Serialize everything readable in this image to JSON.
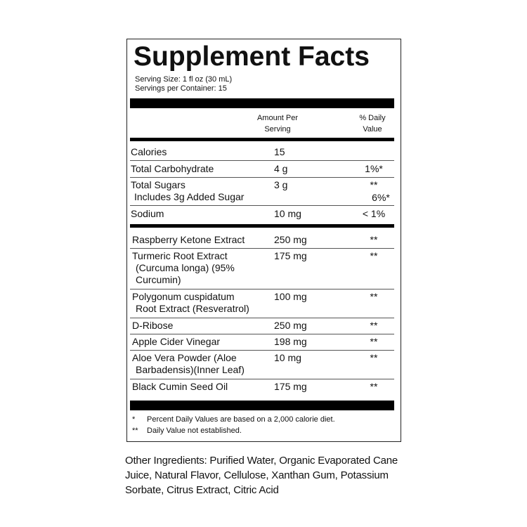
{
  "header": {
    "title": "Supplement Facts",
    "serving_size": "Serving Size: 1 fl oz (30 mL)",
    "servings_per_container": "Servings per Container: 15"
  },
  "columns": {
    "amount": [
      "Amount Per",
      "Serving"
    ],
    "daily_value": [
      "% Daily",
      "Value"
    ]
  },
  "nutrients": [
    {
      "name": [
        "Calories"
      ],
      "amount": "15"
    },
    {
      "name": [
        "Total Carbohydrate"
      ],
      "amount": "4 g",
      "daily_value": [
        "1%*"
      ]
    },
    {
      "name": [
        "Total Sugars",
        "Includes 3g Added Sugar"
      ],
      "amount": "3 g",
      "daily_value": [
        "**",
        "6%*"
      ]
    },
    {
      "name": [
        "Sodium"
      ],
      "amount": "10 mg",
      "daily_value": [
        "< 1%"
      ]
    }
  ],
  "ingredients": [
    {
      "name": [
        "Raspberry Ketone Extract"
      ],
      "amount": "250 mg",
      "daily_value": [
        "**"
      ]
    },
    {
      "name": [
        "Turmeric Root Extract",
        "(Curcuma longa) (95%",
        "Curcumin)"
      ],
      "amount": "175 mg",
      "daily_value": [
        "**"
      ]
    },
    {
      "name": [
        "Polygonum cuspidatum",
        "Root Extract (Resveratrol)"
      ],
      "amount": "100 mg",
      "daily_value": [
        "**"
      ]
    },
    {
      "name": [
        "D-Ribose"
      ],
      "amount": "250 mg",
      "daily_value": [
        "**"
      ]
    },
    {
      "name": [
        "Apple Cider Vinegar"
      ],
      "amount": "198 mg",
      "daily_value": [
        "**"
      ]
    },
    {
      "name": [
        "Aloe Vera Powder (Aloe",
        "Barbadensis)(Inner Leaf)"
      ],
      "amount": "10 mg",
      "daily_value": [
        "**"
      ]
    },
    {
      "name": [
        "Black Cumin Seed Oil"
      ],
      "amount": "175 mg",
      "daily_value": [
        "**"
      ]
    }
  ],
  "footnotes": [
    {
      "mark": "*",
      "text": "Percent Daily Values are based on a 2,000 calorie diet."
    },
    {
      "mark": "**",
      "text": "Daily Value not established."
    }
  ],
  "other_ingredients": [
    "Other Ingredients: Purified Water, Organic Evaporated Cane",
    "Juice, Natural Flavor, Cellulose, Xanthan Gum, Potassium",
    "Sorbate, Citrus Extract, Citric Acid"
  ]
}
